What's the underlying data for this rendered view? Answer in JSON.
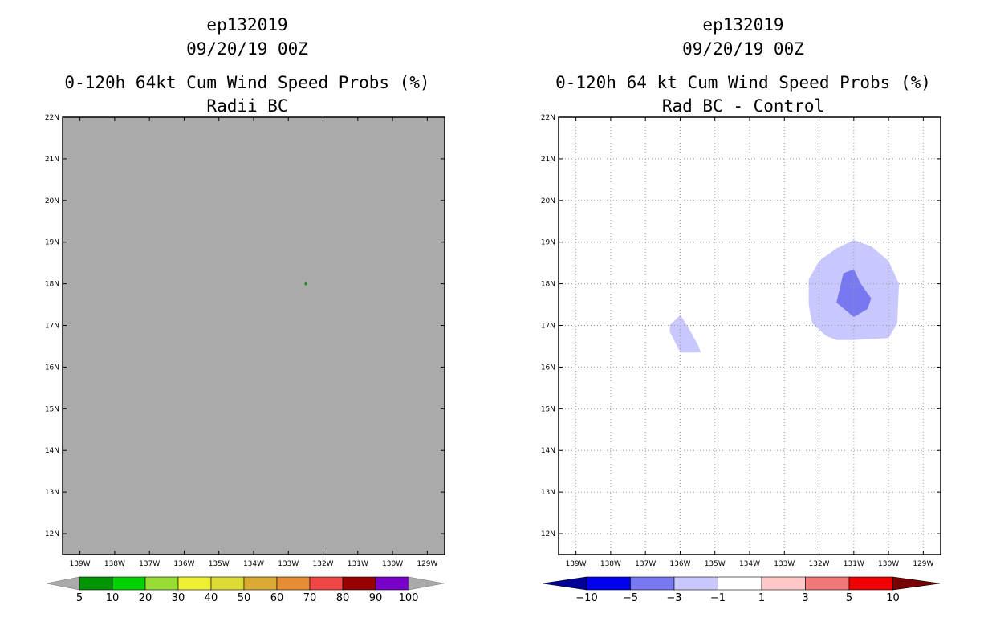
{
  "chart_data": [
    {
      "type": "heatmap",
      "title_lines": [
        "ep132019",
        "09/20/19 00Z",
        "0-120h 64kt Cum Wind Speed Probs (%)",
        "Radii BC"
      ],
      "lon_ticks": [
        "139W",
        "138W",
        "137W",
        "136W",
        "135W",
        "134W",
        "133W",
        "132W",
        "131W",
        "130W",
        "129W"
      ],
      "lat_ticks": [
        "12N",
        "13N",
        "14N",
        "15N",
        "16N",
        "17N",
        "18N",
        "19N",
        "20N",
        "21N",
        "22N"
      ],
      "lon_range": [
        -139.5,
        -128.5
      ],
      "lat_range": [
        11.5,
        22
      ],
      "grid": false,
      "background_color": "#aaaaaa",
      "features": [
        {
          "name": "green-point",
          "lon": -132.5,
          "lat": 18.0,
          "color": "#009a00"
        }
      ],
      "colorbar": {
        "labels": [
          "5",
          "10",
          "20",
          "30",
          "40",
          "50",
          "60",
          "70",
          "80",
          "90",
          "100"
        ],
        "colors": [
          "#009600",
          "#00d200",
          "#96dc32",
          "#f0f032",
          "#dcdc32",
          "#dcaa32",
          "#e68c32",
          "#f04646",
          "#960000",
          "#7800c8"
        ],
        "end_color": "#aaaaaa"
      }
    },
    {
      "type": "heatmap",
      "title_lines": [
        "ep132019",
        "09/20/19 00Z",
        "0-120h 64 kt Cum Wind Speed Probs (%)",
        "Rad BC - Control"
      ],
      "lon_ticks": [
        "139W",
        "138W",
        "137W",
        "136W",
        "135W",
        "134W",
        "133W",
        "132W",
        "131W",
        "130W",
        "129W"
      ],
      "lat_ticks": [
        "12N",
        "13N",
        "14N",
        "15N",
        "16N",
        "17N",
        "18N",
        "19N",
        "20N",
        "21N",
        "22N"
      ],
      "lon_range": [
        -139.5,
        -128.5
      ],
      "lat_range": [
        11.5,
        22
      ],
      "grid": true,
      "background_color": "#ffffff",
      "contours": [
        {
          "name": "light-blob-main",
          "color": "#c8c8ff",
          "points": [
            [
              -131.0,
              19.05
            ],
            [
              -130.5,
              18.9
            ],
            [
              -130.0,
              18.55
            ],
            [
              -129.7,
              18.0
            ],
            [
              -129.75,
              17.05
            ],
            [
              -130.0,
              16.7
            ],
            [
              -131.0,
              16.65
            ],
            [
              -131.5,
              16.65
            ],
            [
              -131.8,
              16.75
            ],
            [
              -132.2,
              17.05
            ],
            [
              -132.3,
              17.5
            ],
            [
              -132.3,
              18.1
            ],
            [
              -132.0,
              18.55
            ],
            [
              -131.5,
              18.85
            ]
          ]
        },
        {
          "name": "dark-blob-main",
          "color": "#7878f0",
          "points": [
            [
              -131.0,
              18.35
            ],
            [
              -130.8,
              18.0
            ],
            [
              -130.5,
              17.65
            ],
            [
              -130.6,
              17.4
            ],
            [
              -131.0,
              17.2
            ],
            [
              -131.5,
              17.55
            ],
            [
              -131.3,
              18.25
            ]
          ]
        },
        {
          "name": "light-blob-small",
          "color": "#c8c8ff",
          "points": [
            [
              -136.0,
              17.25
            ],
            [
              -135.8,
              17.0
            ],
            [
              -135.5,
              16.55
            ],
            [
              -135.4,
              16.35
            ],
            [
              -136.0,
              16.35
            ],
            [
              -136.3,
              16.85
            ],
            [
              -136.3,
              17.0
            ]
          ]
        }
      ],
      "colorbar": {
        "labels": [
          "-10",
          "-5",
          "-3",
          "-1",
          "1",
          "3",
          "5",
          "10"
        ],
        "colors": [
          "#0000f0",
          "#7878f0",
          "#c8c8ff",
          "#ffffff",
          "#ffc8c8",
          "#f07878",
          "#f00000"
        ],
        "start_color": "#000096",
        "end_color": "#780000"
      }
    }
  ]
}
